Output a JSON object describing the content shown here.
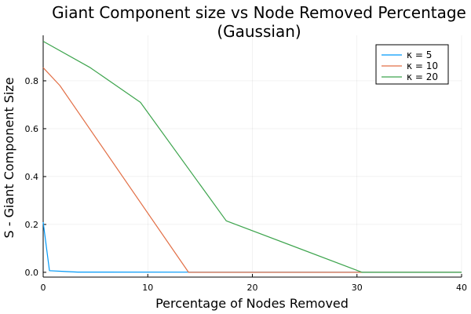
{
  "chart_data": {
    "type": "line",
    "title": "Giant Component size vs Node Removed Percentage",
    "subtitle": "(Gaussian)",
    "xlabel": "Percentage of Nodes Removed",
    "ylabel": "S - Giant Component Size",
    "xlim": [
      0,
      40
    ],
    "ylim": [
      -0.02,
      0.99
    ],
    "xticks": [
      0,
      10,
      20,
      30,
      40
    ],
    "xtick_labels": [
      "0",
      "10",
      "20",
      "30",
      "40"
    ],
    "yticks": [
      0.0,
      0.2,
      0.4,
      0.6,
      0.8
    ],
    "ytick_labels": [
      "0.0",
      "0.2",
      "0.4",
      "0.6",
      "0.8"
    ],
    "grid": true,
    "legend_position": "top-right",
    "series": [
      {
        "name": "κ = 5",
        "color": "#009AFA",
        "x": [
          0,
          0.6,
          3.3,
          40
        ],
        "y": [
          0.21,
          0.007,
          0.001,
          0.0
        ]
      },
      {
        "name": "κ = 10",
        "color": "#E26F46",
        "x": [
          0,
          1.6,
          13.9,
          40
        ],
        "y": [
          0.855,
          0.78,
          0.0,
          0.0
        ]
      },
      {
        "name": "κ = 20",
        "color": "#3DA44D",
        "x": [
          0,
          4.5,
          9.3,
          17.5,
          30.5,
          40
        ],
        "y": [
          0.965,
          0.855,
          0.71,
          0.215,
          0.0,
          0.0
        ]
      }
    ]
  }
}
